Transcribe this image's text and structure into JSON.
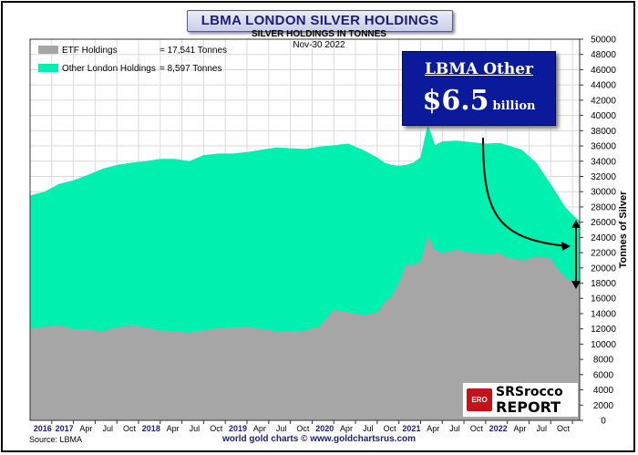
{
  "header": {
    "title": "LBMA LONDON SILVER HOLDINGS",
    "subtitle": "SILVER HOLDINGS IN TONNES",
    "date": "Nov-30  2022"
  },
  "promo": {
    "label": "LBMA Other",
    "value": "$6.5",
    "unit": "billion"
  },
  "logo": {
    "badge": "ERO",
    "line1": "SRSrocco",
    "line2": "REPORT"
  },
  "footer": {
    "source": "Source: LBMA",
    "credit": "world gold charts © www.goldchartsrus.com"
  },
  "colors": {
    "etf": "#a6a6a6",
    "other": "#00f0b0",
    "title": "#1a1d7a",
    "promo_bg": "#0a1a9a"
  },
  "chart_data": {
    "type": "area",
    "stacked": true,
    "title": "LBMA LONDON SILVER HOLDINGS",
    "subtitle": "SILVER HOLDINGS IN TONNES",
    "ylabel": "Tonnes of Silver",
    "ylim": [
      0,
      50000
    ],
    "y_ticks": [
      0,
      2000,
      4000,
      6000,
      8000,
      10000,
      12000,
      14000,
      16000,
      18000,
      20000,
      22000,
      24000,
      26000,
      28000,
      30000,
      32000,
      34000,
      36000,
      38000,
      40000,
      42000,
      44000,
      46000,
      48000,
      50000
    ],
    "y_position": "right",
    "x_start": "2016-07",
    "x_end": "2022-11",
    "x_tick_labels": [
      "2016",
      "2017",
      "Apr",
      "Jul",
      "Oct",
      "2018",
      "Apr",
      "Jul",
      "Oct",
      "2019",
      "Apr",
      "Jul",
      "Oct",
      "2020",
      "Apr",
      "Jul",
      "Oct",
      "2021",
      "Apr",
      "Jul",
      "Oct",
      "2022",
      "Apr",
      "Jul",
      "Oct"
    ],
    "x_tick_positions": [
      "2016-10",
      "2017-01",
      "2017-04",
      "2017-07",
      "2017-10",
      "2018-01",
      "2018-04",
      "2018-07",
      "2018-10",
      "2019-01",
      "2019-04",
      "2019-07",
      "2019-10",
      "2020-01",
      "2020-04",
      "2020-07",
      "2020-10",
      "2021-01",
      "2021-04",
      "2021-07",
      "2021-10",
      "2022-01",
      "2022-04",
      "2022-07",
      "2022-10"
    ],
    "bold_tick_labels": [
      "2016",
      "2017",
      "2018",
      "2019",
      "2020",
      "2021",
      "2022"
    ],
    "legend_position": "top-left",
    "grid": true,
    "series": [
      {
        "name": "ETF Holdings",
        "legend_value": "= 17,541 Tonnes",
        "color": "#a6a6a6",
        "points": [
          [
            "2016-07",
            12000
          ],
          [
            "2016-09",
            12300
          ],
          [
            "2016-11",
            12500
          ],
          [
            "2017-01",
            12000
          ],
          [
            "2017-03",
            11900
          ],
          [
            "2017-05",
            11700
          ],
          [
            "2017-07",
            12200
          ],
          [
            "2017-09",
            12500
          ],
          [
            "2017-11",
            12200
          ],
          [
            "2018-01",
            11800
          ],
          [
            "2018-03",
            11700
          ],
          [
            "2018-05",
            11500
          ],
          [
            "2018-07",
            11800
          ],
          [
            "2018-09",
            12100
          ],
          [
            "2018-11",
            12200
          ],
          [
            "2019-01",
            12300
          ],
          [
            "2019-03",
            12000
          ],
          [
            "2019-05",
            11700
          ],
          [
            "2019-07",
            11600
          ],
          [
            "2019-09",
            11800
          ],
          [
            "2019-11",
            12300
          ],
          [
            "2020-01",
            14500
          ],
          [
            "2020-03",
            14200
          ],
          [
            "2020-05",
            13800
          ],
          [
            "2020-07",
            14100
          ],
          [
            "2020-08",
            15500
          ],
          [
            "2020-09",
            16300
          ],
          [
            "2020-10",
            18000
          ],
          [
            "2020-11",
            20500
          ],
          [
            "2020-12",
            20400
          ],
          [
            "2021-01",
            20800
          ],
          [
            "2021-02",
            24200
          ],
          [
            "2021-03",
            22400
          ],
          [
            "2021-04",
            22000
          ],
          [
            "2021-06",
            22400
          ],
          [
            "2021-08",
            22000
          ],
          [
            "2021-10",
            21800
          ],
          [
            "2021-12",
            21900
          ],
          [
            "2022-01",
            21400
          ],
          [
            "2022-03",
            21000
          ],
          [
            "2022-05",
            21500
          ],
          [
            "2022-07",
            21300
          ],
          [
            "2022-08",
            19800
          ],
          [
            "2022-09",
            18800
          ],
          [
            "2022-10",
            18200
          ],
          [
            "2022-11",
            17541
          ]
        ]
      },
      {
        "name": "Other London Holdings",
        "legend_value": "= 8,597 Tonnes",
        "color": "#00f0b0",
        "total_points": [
          [
            "2016-07",
            29500
          ],
          [
            "2016-09",
            30000
          ],
          [
            "2016-11",
            31000
          ],
          [
            "2017-01",
            31500
          ],
          [
            "2017-03",
            32200
          ],
          [
            "2017-05",
            33000
          ],
          [
            "2017-07",
            33500
          ],
          [
            "2017-09",
            33800
          ],
          [
            "2017-11",
            34000
          ],
          [
            "2018-01",
            34300
          ],
          [
            "2018-03",
            34300
          ],
          [
            "2018-05",
            34000
          ],
          [
            "2018-07",
            34800
          ],
          [
            "2018-09",
            35000
          ],
          [
            "2018-11",
            35000
          ],
          [
            "2019-01",
            35200
          ],
          [
            "2019-03",
            35500
          ],
          [
            "2019-05",
            35800
          ],
          [
            "2019-07",
            35700
          ],
          [
            "2019-09",
            35600
          ],
          [
            "2019-11",
            35900
          ],
          [
            "2020-01",
            36100
          ],
          [
            "2020-03",
            36300
          ],
          [
            "2020-05",
            35500
          ],
          [
            "2020-07",
            34500
          ],
          [
            "2020-08",
            33800
          ],
          [
            "2020-09",
            33500
          ],
          [
            "2020-10",
            33400
          ],
          [
            "2020-11",
            33500
          ],
          [
            "2020-12",
            33800
          ],
          [
            "2021-01",
            34500
          ],
          [
            "2021-02",
            38900
          ],
          [
            "2021-03",
            36100
          ],
          [
            "2021-04",
            36600
          ],
          [
            "2021-06",
            36700
          ],
          [
            "2021-08",
            36500
          ],
          [
            "2021-10",
            36300
          ],
          [
            "2021-12",
            36400
          ],
          [
            "2022-01",
            36100
          ],
          [
            "2022-03",
            35500
          ],
          [
            "2022-05",
            33800
          ],
          [
            "2022-07",
            31000
          ],
          [
            "2022-08",
            29500
          ],
          [
            "2022-09",
            28000
          ],
          [
            "2022-10",
            27000
          ],
          [
            "2022-11",
            26138
          ]
        ]
      }
    ]
  }
}
